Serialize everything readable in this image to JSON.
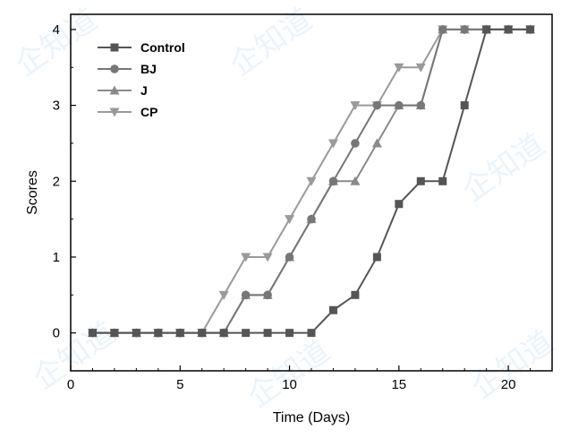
{
  "chart_data": {
    "type": "line",
    "title": "",
    "xlabel": "Time (Days)",
    "ylabel": "Scores",
    "xlim": [
      0,
      22
    ],
    "ylim": [
      -0.5,
      4.2
    ],
    "x_ticks": [
      0,
      5,
      10,
      15,
      20
    ],
    "y_ticks": [
      0,
      1,
      2,
      3,
      4
    ],
    "grid": false,
    "legend_position": "top-left",
    "x": [
      1,
      2,
      3,
      4,
      5,
      6,
      7,
      8,
      9,
      10,
      11,
      12,
      13,
      14,
      15,
      16,
      17,
      18,
      19,
      20,
      21
    ],
    "series": [
      {
        "name": "Control",
        "marker": "square",
        "color": "#555555",
        "values": [
          0,
          0,
          0,
          0,
          0,
          0,
          0,
          0,
          0,
          0,
          0,
          0.3,
          0.5,
          1,
          1.7,
          2,
          2,
          3,
          4,
          4,
          4
        ]
      },
      {
        "name": "BJ",
        "marker": "circle",
        "color": "#777777",
        "values": [
          0,
          0,
          0,
          0,
          0,
          0,
          0,
          0.5,
          0.5,
          1,
          1.5,
          2,
          2.5,
          3,
          3,
          3,
          4,
          4,
          4,
          4,
          4
        ]
      },
      {
        "name": "J",
        "marker": "triangle-up",
        "color": "#8a8a8a",
        "values": [
          0,
          0,
          0,
          0,
          0,
          0,
          0,
          0.5,
          0.5,
          1,
          1.5,
          2,
          2,
          2.5,
          3,
          3,
          4,
          4,
          4,
          4,
          4
        ]
      },
      {
        "name": "CP",
        "marker": "triangle-down",
        "color": "#9a9a9a",
        "values": [
          0,
          0,
          0,
          0,
          0,
          0,
          0.5,
          1,
          1,
          1.5,
          2,
          2.5,
          3,
          3,
          3.5,
          3.5,
          4,
          4,
          4,
          4,
          4
        ]
      }
    ]
  }
}
